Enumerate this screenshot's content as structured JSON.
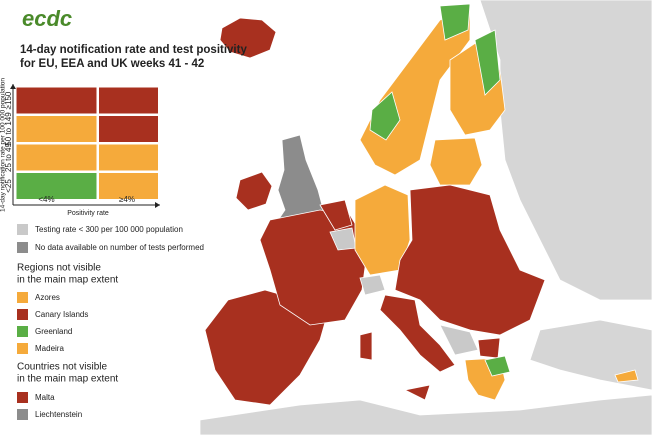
{
  "logo": "ecdc",
  "title": [
    "14-day notification rate and test positivity",
    "for EU, EEA and UK weeks 41 - 42"
  ],
  "matrix": {
    "y_axis_title": "14-day notification rate per 100 000 population",
    "rows": [
      "≥150",
      "50 to 149",
      "25 to 49",
      "<25"
    ],
    "columns": [
      "<4%",
      "≥4%"
    ],
    "x_axis_title": "Positivity rate",
    "cell_colors": [
      [
        "#a8301f",
        "#a8301f"
      ],
      [
        "#f5aa3b",
        "#a8301f"
      ],
      [
        "#f5aa3b",
        "#f5aa3b"
      ],
      [
        "#5aae45",
        "#f5aa3b"
      ]
    ]
  },
  "legend": [
    {
      "label": "Testing rate < 300 per 100 000 population",
      "color": "#c9c9c9"
    },
    {
      "label": "No data available on number of tests performed",
      "color": "#8c8c8c"
    }
  ],
  "regions_heading": [
    "Regions not visible",
    "in the main map extent"
  ],
  "regions": [
    {
      "label": "Azores",
      "color": "#f5aa3b"
    },
    {
      "label": "Canary Islands",
      "color": "#a8301f"
    },
    {
      "label": "Greenland",
      "color": "#5aae45"
    },
    {
      "label": "Madeira",
      "color": "#f5aa3b"
    }
  ],
  "countries_heading": [
    "Countries not visible",
    "in the main map extent"
  ],
  "countries": [
    {
      "label": "Malta",
      "color": "#a8301f"
    },
    {
      "label": "Liechtenstein",
      "color": "#8c8c8c"
    }
  ]
}
